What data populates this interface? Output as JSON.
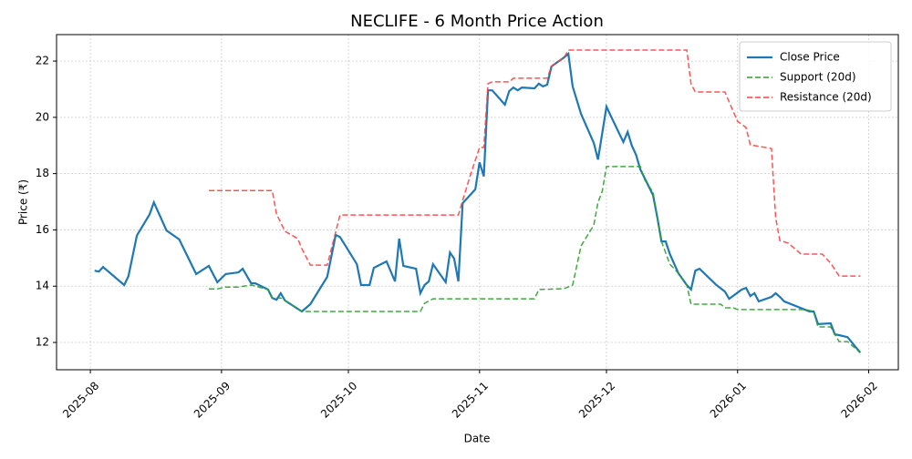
{
  "chart_data": {
    "type": "line",
    "title": "NECLIFE - 6 Month Price Action",
    "x_label": "Date",
    "y_label": "Price (₹)",
    "xlim": [
      -8,
      191
    ],
    "ylim": [
      11.03,
      22.94
    ],
    "xticks": [
      {
        "value": 0,
        "label": "2025-08"
      },
      {
        "value": 31,
        "label": "2025-09"
      },
      {
        "value": 61,
        "label": "2025-10"
      },
      {
        "value": 92,
        "label": "2025-11"
      },
      {
        "value": 122,
        "label": "2025-12"
      },
      {
        "value": 153,
        "label": "2026-01"
      },
      {
        "value": 184,
        "label": "2026-02"
      }
    ],
    "yticks": [
      12,
      14,
      16,
      18,
      20,
      22
    ],
    "grid": true,
    "legend": "upper right",
    "series": [
      {
        "name": "Close Price",
        "color": "#1f77b4",
        "dashed": false,
        "x": [
          1,
          2,
          3,
          4,
          8,
          9,
          11,
          14,
          15,
          18,
          21,
          25,
          28,
          30,
          32,
          35,
          36,
          38,
          39,
          42,
          43,
          44,
          45,
          46,
          50,
          52,
          56,
          58,
          59,
          63,
          64,
          66,
          67,
          70,
          72,
          73,
          74,
          77,
          78,
          79,
          80,
          81,
          84,
          85,
          86,
          87,
          88,
          91,
          92,
          93,
          94,
          95,
          98,
          99,
          100,
          101,
          102,
          105,
          106,
          107,
          108,
          109,
          112,
          113,
          114,
          116,
          119,
          120,
          122,
          123,
          126,
          127,
          128,
          129,
          130,
          133,
          134,
          135,
          136,
          137,
          139,
          141,
          142,
          143,
          144,
          148,
          150,
          151,
          154,
          155,
          156,
          157,
          158,
          161,
          162,
          163,
          164,
          170,
          171,
          172,
          175,
          176,
          177,
          179,
          182
        ],
        "values": [
          14.55,
          14.52,
          14.68,
          14.55,
          14.04,
          14.35,
          15.8,
          16.55,
          16.98,
          15.98,
          15.66,
          14.43,
          14.72,
          14.14,
          14.43,
          14.49,
          14.62,
          14.1,
          14.1,
          13.88,
          13.58,
          13.52,
          13.75,
          13.49,
          13.1,
          13.36,
          14.33,
          15.82,
          15.75,
          14.78,
          14.04,
          14.04,
          14.65,
          14.88,
          14.17,
          15.69,
          14.72,
          14.62,
          13.75,
          14.04,
          14.17,
          14.78,
          14.14,
          15.2,
          14.98,
          14.17,
          16.95,
          17.44,
          18.4,
          17.9,
          20.96,
          20.96,
          20.45,
          20.93,
          21.06,
          20.96,
          21.06,
          21.03,
          21.2,
          21.1,
          21.16,
          21.81,
          22.13,
          22.26,
          21.1,
          20.12,
          19.09,
          18.5,
          20.38,
          20.06,
          19.12,
          19.48,
          18.99,
          18.67,
          18.15,
          17.24,
          16.47,
          15.59,
          15.59,
          15.14,
          14.46,
          14.04,
          13.88,
          14.55,
          14.62,
          14.04,
          13.81,
          13.55,
          13.88,
          13.94,
          13.65,
          13.75,
          13.46,
          13.62,
          13.75,
          13.62,
          13.46,
          13.1,
          13.1,
          12.65,
          12.68,
          12.29,
          12.26,
          12.19,
          11.64
        ]
      },
      {
        "name": "Support (20d)",
        "color": "#2ca02c",
        "dashed": true,
        "x": [
          28,
          30,
          32,
          35,
          38,
          42,
          43,
          45,
          46,
          50,
          78,
          79,
          81,
          105,
          106,
          112,
          114,
          116,
          119,
          120,
          121,
          122,
          130,
          131,
          133,
          135,
          137,
          139,
          141,
          142,
          149,
          150,
          152,
          153,
          169,
          171,
          172,
          175,
          176,
          177,
          179,
          182
        ],
        "values": [
          13.9,
          13.9,
          13.97,
          13.97,
          14.04,
          13.88,
          13.58,
          13.58,
          13.49,
          13.1,
          13.1,
          13.39,
          13.55,
          13.55,
          13.88,
          13.91,
          14.04,
          15.43,
          16.17,
          16.98,
          17.37,
          18.25,
          18.25,
          17.79,
          17.34,
          15.59,
          14.78,
          14.46,
          14.04,
          13.36,
          13.36,
          13.23,
          13.23,
          13.17,
          13.17,
          13.1,
          12.55,
          12.55,
          12.29,
          12.03,
          12.03,
          11.64
        ]
      },
      {
        "name": "Resistance (20d)",
        "color": "#ff4040",
        "dashed": true,
        "x": [
          28,
          43,
          44,
          46,
          49,
          50,
          52,
          56,
          59,
          87,
          88,
          90,
          92,
          93,
          94,
          95,
          99,
          100,
          108,
          109,
          112,
          113,
          141,
          142,
          143,
          150,
          153,
          155,
          156,
          161,
          162,
          163,
          165,
          168,
          173,
          175,
          177,
          182
        ],
        "values": [
          17.4,
          17.4,
          16.56,
          15.95,
          15.69,
          15.33,
          14.75,
          14.75,
          16.53,
          16.53,
          17.05,
          18.02,
          18.93,
          18.93,
          21.2,
          21.26,
          21.26,
          21.39,
          21.39,
          21.81,
          22.13,
          22.39,
          22.39,
          21.19,
          20.9,
          20.9,
          19.86,
          19.64,
          19.02,
          18.89,
          16.43,
          15.62,
          15.53,
          15.14,
          15.14,
          14.82,
          14.36,
          14.36
        ]
      }
    ]
  }
}
